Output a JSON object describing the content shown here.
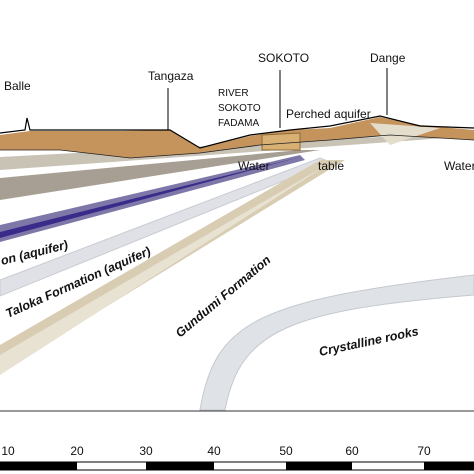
{
  "places": {
    "balle": "Balle",
    "tangaza": "Tangaza",
    "sokoto": "SOKOTO",
    "dange": "Dange",
    "river": [
      "RIVER",
      "SOKOTO",
      "FADAMA"
    ],
    "perched": "Perched aquifer",
    "water_left": "Water",
    "table": "table",
    "water_right": "Water"
  },
  "formations": {
    "upper": "on (aquifer)",
    "taloka": "Taloka Formation (aquifer)",
    "gundumi": "Gundumi Formation",
    "crystalline": "Crystalline  rooks"
  },
  "scale": {
    "ticks": [
      10,
      20,
      30,
      40,
      50,
      60,
      70
    ]
  }
}
